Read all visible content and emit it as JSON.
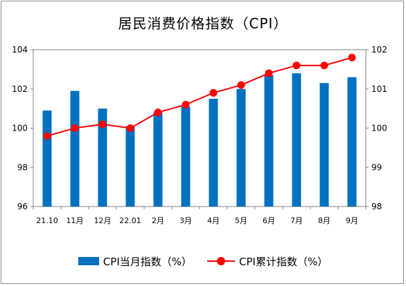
{
  "chart_data": {
    "type": "bar",
    "title": "居民消费价格指数（CPI）",
    "categories": [
      "21.10",
      "11月",
      "12月",
      "22.01",
      "2月",
      "3月",
      "4月",
      "5月",
      "6月",
      "7月",
      "8月",
      "9月"
    ],
    "series": [
      {
        "name": "CPI当月指数（%）",
        "type": "bar",
        "axis": "left",
        "color": "#0070c0",
        "values": [
          100.9,
          101.9,
          101.0,
          100.1,
          100.8,
          101.1,
          101.5,
          102.0,
          102.7,
          102.8,
          102.3,
          102.6
        ]
      },
      {
        "name": "CPI累计指数（%）",
        "type": "line",
        "axis": "right",
        "color": "#ff0000",
        "values": [
          99.8,
          100.0,
          100.1,
          100.0,
          100.4,
          100.6,
          100.9,
          101.1,
          101.4,
          101.6,
          101.6,
          101.8
        ]
      }
    ],
    "left_axis": {
      "ylim": [
        96,
        104
      ],
      "ticks": [
        96,
        98,
        100,
        102,
        104
      ]
    },
    "right_axis": {
      "ylim": [
        98,
        102
      ],
      "ticks": [
        98,
        99,
        100,
        101,
        102
      ]
    },
    "grid": false,
    "legend_position": "bottom"
  }
}
